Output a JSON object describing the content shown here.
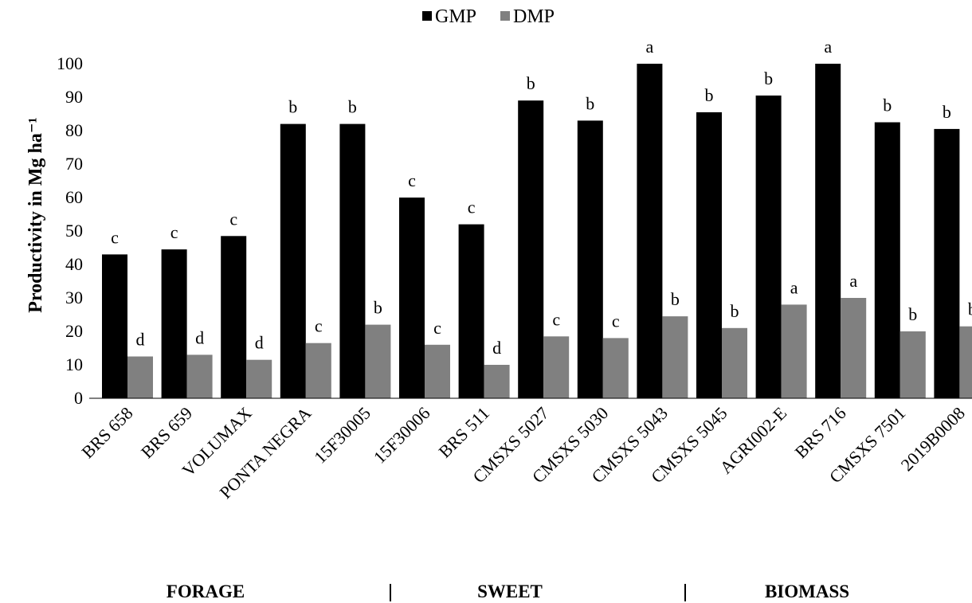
{
  "chart_data": {
    "type": "bar",
    "xlabel": "",
    "ylabel": "Productivity in Mg ha⁻¹",
    "ylim": [
      0,
      100
    ],
    "yticks": [
      0,
      10,
      20,
      30,
      40,
      50,
      60,
      70,
      80,
      90,
      100
    ],
    "legend_position": "top-center",
    "categories": [
      "BRS 658",
      "BRS 659",
      "VOLUMAX",
      "PONTA NEGRA",
      "15F30005",
      "15F30006",
      "BRS 511",
      "CMSXS 5027",
      "CMSXS 5030",
      "CMSXS 5043",
      "CMSXS 5045",
      "AGRI002-E",
      "BRS 716",
      "CMSXS 7501",
      "2019B0008"
    ],
    "series": [
      {
        "name": "GMP",
        "color": "#000000",
        "values": [
          43,
          44.5,
          48.5,
          82,
          82,
          60,
          52,
          89,
          83,
          100,
          85.5,
          90.5,
          100,
          82.5,
          80.5
        ],
        "labels": [
          "c",
          "c",
          "c",
          "b",
          "b",
          "c",
          "c",
          "b",
          "b",
          "a",
          "b",
          "b",
          "a",
          "b",
          "b"
        ]
      },
      {
        "name": "DMP",
        "color": "#808080",
        "values": [
          12.5,
          13,
          11.5,
          16.5,
          22,
          16,
          10,
          18.5,
          18,
          24.5,
          21,
          28,
          30,
          20,
          21.5
        ],
        "labels": [
          "d",
          "d",
          "d",
          "c",
          "b",
          "c",
          "d",
          "c",
          "c",
          "b",
          "b",
          "a",
          "a",
          "b",
          "b"
        ]
      }
    ],
    "groups": [
      {
        "label": "FORAGE",
        "separator": "|"
      },
      {
        "label": "SWEET",
        "separator": "|"
      },
      {
        "label": "BIOMASS",
        "separator": ""
      }
    ]
  }
}
